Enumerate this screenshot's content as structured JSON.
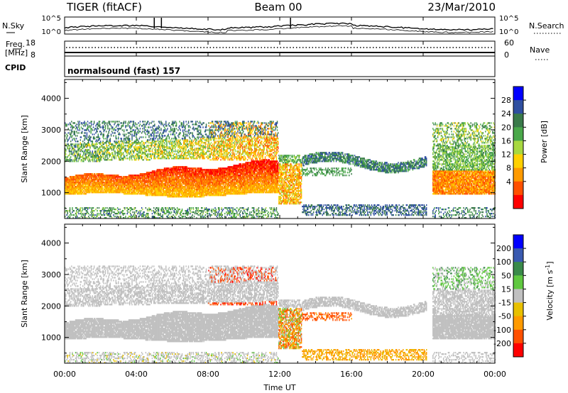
{
  "header": {
    "title": "TIGER (fitACF)",
    "beam": "Beam 00",
    "date": "23/Mar/2010"
  },
  "noise_panel": {
    "left_label": "N.Sky",
    "right_label": "N.Search",
    "left_ticks": [
      "10^5",
      "10^0"
    ],
    "right_ticks": [
      "10^5",
      "10^0"
    ]
  },
  "freq_panel": {
    "left_label_line1": "Freq.",
    "left_label_line2": "[MHz]",
    "right_label": "Nave",
    "left_ticks": [
      "18",
      "8"
    ],
    "right_ticks": [
      "60",
      "0"
    ]
  },
  "cpid_panel": {
    "label": "CPID",
    "text": "normalsound (fast) 157"
  },
  "colors": {
    "power_scale": [
      "#0000ff",
      "#2f4fa0",
      "#3a7a4a",
      "#4aa84a",
      "#a8d840",
      "#ffd000",
      "#ff9a00",
      "#ff5000",
      "#ff0000"
    ],
    "velocity_scale": [
      "#0000ff",
      "#3a5ab0",
      "#3a8a4a",
      "#60c840",
      "#c0c0c0",
      "#e8c000",
      "#ff9a00",
      "#ff5000",
      "#ff0000"
    ]
  },
  "chart_data": [
    {
      "type": "heatmap",
      "name": "power",
      "ylabel": "Slant Range [km]",
      "ylim": [
        180,
        4600
      ],
      "yticks": [
        "4000",
        "3000",
        "2000",
        "1000"
      ],
      "colorbar_label": "Power [dB]",
      "colorbar_ticks": [
        "28",
        "24",
        "20",
        "16",
        "12",
        "8",
        "4"
      ],
      "colorbar_range": [
        0,
        32
      ]
    },
    {
      "type": "heatmap",
      "name": "velocity",
      "ylabel": "Slant Range [km]",
      "ylim": [
        180,
        4600
      ],
      "yticks": [
        "4000",
        "3000",
        "2000",
        "1000"
      ],
      "colorbar_label": "Velocity [m s^-1]",
      "colorbar_ticks": [
        "200",
        "100",
        "50",
        "15",
        "-15",
        "-50",
        "-100",
        "-200"
      ]
    }
  ],
  "xaxis": {
    "label": "Time UT",
    "range_hours": [
      0,
      24
    ],
    "ticks": [
      "00:00",
      "04:00",
      "08:00",
      "12:00",
      "16:00",
      "20:00",
      "00:00"
    ]
  }
}
